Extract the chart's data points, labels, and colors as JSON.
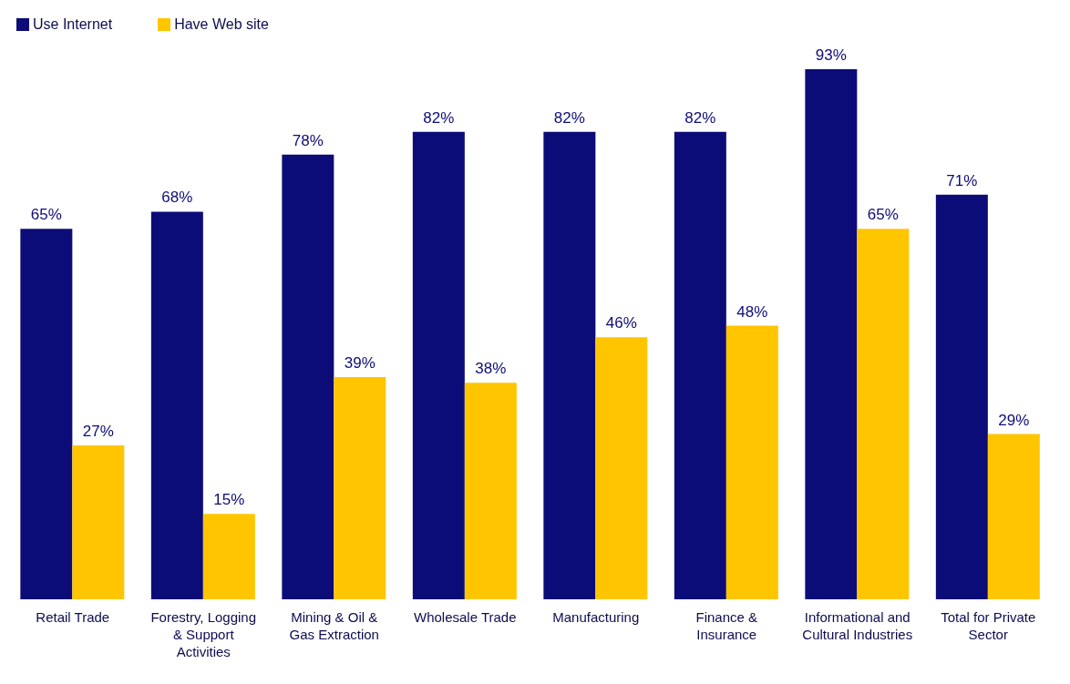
{
  "chart_data": {
    "type": "bar",
    "categories": [
      "Retail Trade",
      "Forestry, Logging & Support Activities",
      "Mining & Oil & Gas Extraction",
      "Wholesale Trade",
      "Manufacturing",
      "Finance & Insurance",
      "Informational and Cultural Industries",
      "Total for Private Sector"
    ],
    "series": [
      {
        "name": "Use Internet",
        "color": "#0c0c78",
        "values": [
          65,
          68,
          78,
          82,
          82,
          82,
          93,
          71
        ],
        "value_labels": [
          "65%",
          "68%",
          "78%",
          "82%",
          "82%",
          "82%",
          "93%",
          "71%"
        ]
      },
      {
        "name": "Have Web site",
        "color": "#ffc600",
        "values": [
          27,
          15,
          39,
          38,
          46,
          48,
          65,
          29
        ],
        "value_labels": [
          "27%",
          "15%",
          "39%",
          "38%",
          "46%",
          "48%",
          "65%",
          "29%"
        ]
      }
    ],
    "legend": "top left",
    "grid": false
  }
}
